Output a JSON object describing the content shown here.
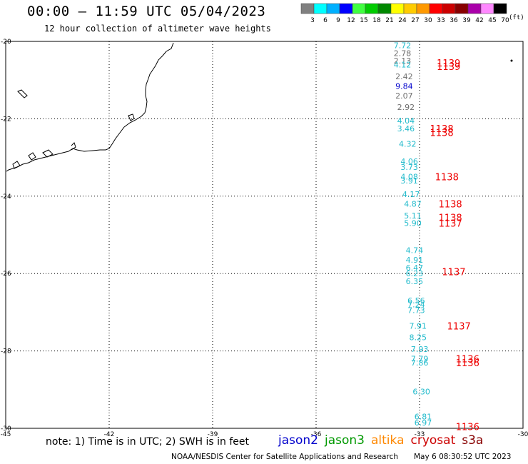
{
  "title": "00:00 – 11:59 UTC 05/04/2023",
  "subtitle": "12 hour collection of altimeter wave heights",
  "legend": {
    "unit": "(ft)",
    "ticks": [
      "3",
      "6",
      "9",
      "12",
      "15",
      "18",
      "21",
      "24",
      "27",
      "30",
      "33",
      "36",
      "39",
      "42",
      "45",
      "70"
    ],
    "colors": [
      "#808080",
      "#00ffff",
      "#00b0ff",
      "#0000ff",
      "#40ff40",
      "#00cc00",
      "#008800",
      "#ffff00",
      "#ffcc00",
      "#ff9900",
      "#ff0000",
      "#cc0000",
      "#880000",
      "#aa00aa",
      "#ff88ff",
      "#000000"
    ]
  },
  "axes": {
    "lon_labels": [
      "-45",
      "-42",
      "-39",
      "-36",
      "-33",
      "-30"
    ],
    "lat_labels": [
      "-20",
      "-22",
      "-24",
      "-26",
      "-28",
      "-30"
    ]
  },
  "note": "note: 1) Time is in UTC; 2) SWH is in feet",
  "satellites": [
    {
      "name": "jason2",
      "color": "#0000cc"
    },
    {
      "name": "jason3",
      "color": "#009900"
    },
    {
      "name": "altika",
      "color": "#ff8800"
    },
    {
      "name": "cryosat",
      "color": "#cc0000"
    },
    {
      "name": "s3a",
      "color": "#880000"
    }
  ],
  "credit": "NOAA/NESDIS Center for Satellite Applications and Research",
  "credit_time": "May  6 08:30:52 UTC 2023",
  "wave_labels": [
    {
      "text": "7.72",
      "color": "#22bbcc",
      "lat": -20.1,
      "lon": -33.75
    },
    {
      "text": "2.78",
      "color": "#707070",
      "lat": -20.3,
      "lon": -33.75
    },
    {
      "text": "2.13",
      "color": "#707070",
      "lat": -20.5,
      "lon": -33.75
    },
    {
      "text": "4.12",
      "color": "#22bbcc",
      "lat": -20.6,
      "lon": -33.75
    },
    {
      "text": "2.42",
      "color": "#707070",
      "lat": -20.9,
      "lon": -33.7
    },
    {
      "text": "9.84",
      "color": "#0000cc",
      "lat": -21.15,
      "lon": -33.7
    },
    {
      "text": "2.07",
      "color": "#707070",
      "lat": -21.4,
      "lon": -33.7
    },
    {
      "text": "2.92",
      "color": "#707070",
      "lat": -21.7,
      "lon": -33.65
    },
    {
      "text": "4.04",
      "color": "#22bbcc",
      "lat": -22.05,
      "lon": -33.65
    },
    {
      "text": "3.46",
      "color": "#22bbcc",
      "lat": -22.25,
      "lon": -33.65
    },
    {
      "text": "4.32",
      "color": "#22bbcc",
      "lat": -22.65,
      "lon": -33.6
    },
    {
      "text": "4.06",
      "color": "#22bbcc",
      "lat": -23.1,
      "lon": -33.55
    },
    {
      "text": "3.73",
      "color": "#22bbcc",
      "lat": -23.25,
      "lon": -33.55
    },
    {
      "text": "4.08",
      "color": "#22bbcc",
      "lat": -23.5,
      "lon": -33.55
    },
    {
      "text": "3.91",
      "color": "#22bbcc",
      "lat": -23.6,
      "lon": -33.55
    },
    {
      "text": "4.17",
      "color": "#22bbcc",
      "lat": -23.95,
      "lon": -33.5
    },
    {
      "text": "4.87",
      "color": "#22bbcc",
      "lat": -24.2,
      "lon": -33.45
    },
    {
      "text": "5.11",
      "color": "#22bbcc",
      "lat": -24.5,
      "lon": -33.45
    },
    {
      "text": "5.90",
      "color": "#22bbcc",
      "lat": -24.7,
      "lon": -33.45
    },
    {
      "text": "4.74",
      "color": "#22bbcc",
      "lat": -25.4,
      "lon": -33.4
    },
    {
      "text": "4.91",
      "color": "#22bbcc",
      "lat": -25.65,
      "lon": -33.4
    },
    {
      "text": "6.47",
      "color": "#22bbcc",
      "lat": -25.85,
      "lon": -33.4
    },
    {
      "text": "6.23",
      "color": "#22bbcc",
      "lat": -26.0,
      "lon": -33.4
    },
    {
      "text": "6.35",
      "color": "#22bbcc",
      "lat": -26.2,
      "lon": -33.4
    },
    {
      "text": "6.56",
      "color": "#22bbcc",
      "lat": -26.7,
      "lon": -33.35
    },
    {
      "text": "7.24",
      "color": "#22bbcc",
      "lat": -26.8,
      "lon": -33.35
    },
    {
      "text": "7.73",
      "color": "#22bbcc",
      "lat": -26.95,
      "lon": -33.35
    },
    {
      "text": "7.91",
      "color": "#22bbcc",
      "lat": -27.35,
      "lon": -33.3
    },
    {
      "text": "8.25",
      "color": "#22bbcc",
      "lat": -27.65,
      "lon": -33.3
    },
    {
      "text": "7.93",
      "color": "#22bbcc",
      "lat": -27.95,
      "lon": -33.25
    },
    {
      "text": "7.79",
      "color": "#22bbcc",
      "lat": -28.2,
      "lon": -33.25
    },
    {
      "text": "7.86",
      "color": "#22bbcc",
      "lat": -28.3,
      "lon": -33.25
    },
    {
      "text": "6.30",
      "color": "#22bbcc",
      "lat": -29.05,
      "lon": -33.2
    },
    {
      "text": "6.81",
      "color": "#22bbcc",
      "lat": -29.7,
      "lon": -33.15
    },
    {
      "text": "6.97",
      "color": "#22bbcc",
      "lat": -29.85,
      "lon": -33.15
    }
  ],
  "pass_labels": [
    {
      "text": "1139",
      "lat": -20.55,
      "lon": -32.5
    },
    {
      "text": "1139",
      "lat": -20.65,
      "lon": -32.5
    },
    {
      "text": "1138",
      "lat": -22.25,
      "lon": -32.7
    },
    {
      "text": "1138",
      "lat": -22.35,
      "lon": -32.7
    },
    {
      "text": "1138",
      "lat": -23.5,
      "lon": -32.55
    },
    {
      "text": "1138",
      "lat": -24.2,
      "lon": -32.45
    },
    {
      "text": "1138",
      "lat": -24.55,
      "lon": -32.45
    },
    {
      "text": "1137",
      "lat": -24.7,
      "lon": -32.45
    },
    {
      "text": "1137",
      "lat": -25.95,
      "lon": -32.35
    },
    {
      "text": "1137",
      "lat": -27.35,
      "lon": -32.2
    },
    {
      "text": "1136",
      "lat": -28.2,
      "lon": -31.95
    },
    {
      "text": "1136",
      "lat": -28.3,
      "lon": -31.95
    },
    {
      "text": "1136",
      "lat": -29.95,
      "lon": -31.95
    }
  ]
}
